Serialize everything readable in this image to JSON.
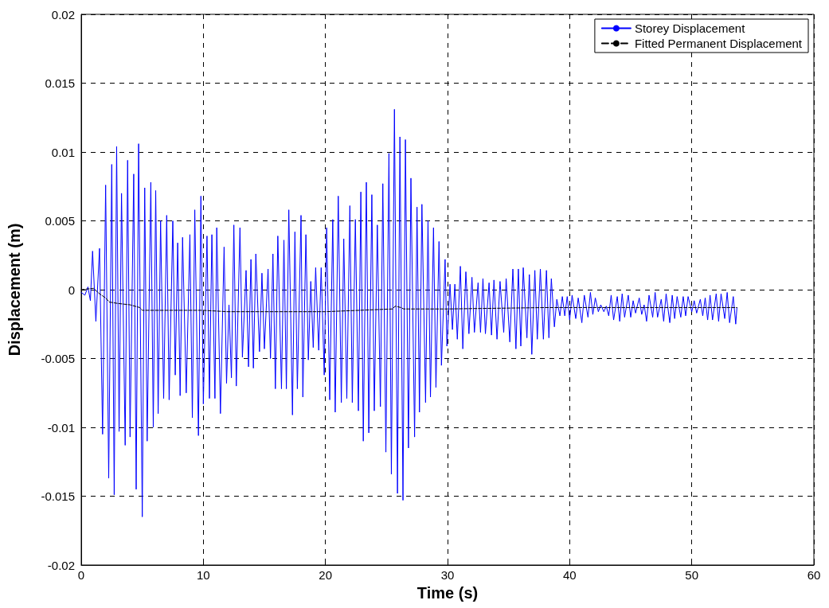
{
  "chart_data": {
    "type": "line",
    "xlabel": "Time (s)",
    "ylabel": "Displacement (m)",
    "xlim": [
      0,
      60
    ],
    "xticks": [
      0,
      10,
      20,
      30,
      40,
      50,
      60
    ],
    "ylim": [
      -0.02,
      0.02
    ],
    "yticks": [
      -0.02,
      -0.015,
      -0.01,
      -0.005,
      0,
      0.005,
      0.01,
      0.015,
      0.02
    ],
    "grid": true,
    "legend": "top right",
    "marker": "none",
    "series": [
      {
        "name": "Storey Displacement",
        "color": "#0000ff",
        "line_style": "solid",
        "x": [
          0,
          0.3,
          0.55,
          0.75,
          0.93,
          1.2,
          1.5,
          1.75,
          2.0,
          2.25,
          2.5,
          2.7,
          2.9,
          3.1,
          3.3,
          3.6,
          3.8,
          4.0,
          4.3,
          4.5,
          4.7,
          5.0,
          5.2,
          5.4,
          5.7,
          5.9,
          6.1,
          6.3,
          6.5,
          6.75,
          7.0,
          7.2,
          7.5,
          7.7,
          7.9,
          8.1,
          8.3,
          8.6,
          8.9,
          9.1,
          9.3,
          9.6,
          9.8,
          10.0,
          10.3,
          10.5,
          10.7,
          10.95,
          11.1,
          11.4,
          11.7,
          11.9,
          12.1,
          12.3,
          12.5,
          12.7,
          13.0,
          13.2,
          13.5,
          13.7,
          13.9,
          14.1,
          14.3,
          14.6,
          14.8,
          15.0,
          15.3,
          15.5,
          15.7,
          15.9,
          16.1,
          16.4,
          16.6,
          16.8,
          17.0,
          17.3,
          17.5,
          17.7,
          18.0,
          18.15,
          18.4,
          18.6,
          18.8,
          19.0,
          19.2,
          19.45,
          19.65,
          19.9,
          20.1,
          20.35,
          20.6,
          20.8,
          21.05,
          21.3,
          21.5,
          21.75,
          22.0,
          22.2,
          22.45,
          22.7,
          22.9,
          23.1,
          23.35,
          23.55,
          23.8,
          24.0,
          24.25,
          24.5,
          24.7,
          24.95,
          25.2,
          25.4,
          25.65,
          25.9,
          26.1,
          26.35,
          26.55,
          26.8,
          27.0,
          27.3,
          27.5,
          27.7,
          27.9,
          28.2,
          28.4,
          28.6,
          28.85,
          29.05,
          29.3,
          29.5,
          29.8,
          29.95,
          30.2,
          30.4,
          30.6,
          30.8,
          31.05,
          31.25,
          31.5,
          31.75,
          32.0,
          32.2,
          32.5,
          32.7,
          32.9,
          33.1,
          33.4,
          33.6,
          33.8,
          34.05,
          34.3,
          34.6,
          34.8,
          35.1,
          35.35,
          35.6,
          35.8,
          36.0,
          36.2,
          36.5,
          36.7,
          36.9,
          37.15,
          37.35,
          37.6,
          37.85,
          38.1,
          38.3,
          38.5,
          38.75,
          38.95,
          39.2,
          39.4,
          39.6,
          39.8,
          40.0,
          40.2,
          40.5,
          40.7,
          41.0,
          41.2,
          41.5,
          41.7,
          41.9,
          42.1,
          42.35,
          42.55,
          42.8,
          43.0,
          43.2,
          43.4,
          43.6,
          43.9,
          44.1,
          44.3,
          44.5,
          44.8,
          45.0,
          45.2,
          45.4,
          45.7,
          45.9,
          46.1,
          46.3,
          46.5,
          46.8,
          47.0,
          47.2,
          47.5,
          47.7,
          47.9,
          48.2,
          48.4,
          48.6,
          48.8,
          49.1,
          49.3,
          49.5,
          49.7,
          50.0,
          50.2,
          50.4,
          50.7,
          50.9,
          51.1,
          51.3,
          51.5,
          51.7,
          52.0,
          52.2,
          52.4,
          52.7,
          52.9,
          53.1,
          53.4,
          53.6,
          53.7
        ],
        "values": [
          -0.0002,
          -0.0004,
          0.0002,
          -0.0008,
          0.0028,
          -0.0023,
          0.003,
          -0.0105,
          0.0076,
          -0.0137,
          0.0091,
          -0.0149,
          0.0104,
          -0.0103,
          0.007,
          -0.0113,
          0.0094,
          -0.0107,
          0.0084,
          -0.0145,
          0.0106,
          -0.0165,
          0.0074,
          -0.011,
          0.0078,
          -0.01,
          0.0072,
          -0.009,
          0.005,
          -0.0079,
          0.0054,
          -0.008,
          0.005,
          -0.0062,
          0.0034,
          -0.0077,
          0.0038,
          -0.0075,
          0.004,
          -0.0093,
          0.0058,
          -0.0106,
          0.0068,
          -0.0083,
          0.0039,
          -0.0079,
          0.004,
          -0.0079,
          0.0045,
          -0.009,
          0.0031,
          -0.0068,
          -0.0011,
          -0.0064,
          0.0047,
          -0.007,
          0.0045,
          -0.0049,
          0.0014,
          -0.0056,
          0.0022,
          -0.0057,
          0.0026,
          -0.0045,
          0.0012,
          -0.0043,
          0.0015,
          -0.005,
          0.0026,
          -0.0072,
          0.0039,
          -0.0072,
          0.0036,
          -0.0072,
          0.0058,
          -0.0091,
          0.0042,
          -0.0072,
          0.0054,
          -0.0078,
          0.004,
          -0.0051,
          0.0006,
          -0.0042,
          0.0016,
          -0.0044,
          0.0016,
          -0.0062,
          0.0045,
          -0.008,
          0.0051,
          -0.0089,
          0.0068,
          -0.0082,
          0.0037,
          -0.0079,
          0.0061,
          -0.0082,
          0.0051,
          -0.0088,
          0.0071,
          -0.011,
          0.0078,
          -0.0104,
          0.0069,
          -0.0088,
          0.0047,
          -0.0085,
          0.0077,
          -0.0118,
          0.0099,
          -0.0134,
          0.0131,
          -0.0148,
          0.0111,
          -0.0153,
          0.0109,
          -0.0115,
          0.0081,
          -0.0107,
          0.006,
          -0.0089,
          0.0062,
          -0.0082,
          0.005,
          -0.0078,
          0.0045,
          -0.0071,
          0.0035,
          -0.0055,
          0.0022,
          -0.0041,
          0.0004,
          -0.0029,
          0.0004,
          -0.0036,
          0.0017,
          -0.0043,
          0.0013,
          -0.0032,
          0.0009,
          -0.0031,
          0.0005,
          -0.0031,
          0.0008,
          -0.0032,
          0.0005,
          -0.0033,
          0.0007,
          -0.0036,
          0.0006,
          -0.0031,
          0.0008,
          -0.0038,
          0.0015,
          -0.0043,
          0.0015,
          -0.0041,
          0.0016,
          -0.0035,
          0.0011,
          -0.0047,
          0.0014,
          -0.0036,
          0.0015,
          -0.0036,
          0.0014,
          -0.0035,
          0.0008,
          -0.0027,
          -0.0007,
          -0.0019,
          -0.0005,
          -0.0019,
          -0.0005,
          -0.0022,
          -0.0004,
          -0.0021,
          -0.0006,
          -0.0024,
          -0.0004,
          -0.002,
          -0.0002,
          -0.0018,
          -0.0006,
          -0.0016,
          -0.0011,
          -0.0016,
          -0.0012,
          -0.0019,
          -0.0004,
          -0.0022,
          -0.0005,
          -0.0023,
          -0.0003,
          -0.002,
          -0.0004,
          -0.002,
          -0.0008,
          -0.0017,
          -0.0006,
          -0.0018,
          -0.0011,
          -0.0023,
          -0.0004,
          -0.002,
          -0.0002,
          -0.002,
          -0.0007,
          -0.0023,
          -0.0003,
          -0.0024,
          -0.0004,
          -0.0021,
          -0.0005,
          -0.002,
          -0.0005,
          -0.0019,
          -0.0005,
          -0.0016,
          -0.0008,
          -0.0017,
          -0.0007,
          -0.0019,
          -0.0006,
          -0.0022,
          -0.0004,
          -0.0022,
          -0.0003,
          -0.0023,
          -0.0003,
          -0.0021,
          -0.0002,
          -0.0024,
          -0.0005,
          -0.0025,
          -0.0013
        ]
      },
      {
        "name": "Fitted Permanent Displacement",
        "color": "#000000",
        "line_style": "dashed",
        "x": [
          0,
          1.0,
          1.5,
          2.0,
          2.3,
          3.0,
          4.0,
          4.8,
          5.0,
          10,
          12,
          18,
          20,
          25.5,
          25.7,
          26.2,
          26.4,
          30,
          38,
          53.7
        ],
        "values": [
          0,
          0.0001,
          -0.0003,
          -0.0006,
          -0.0009,
          -0.001,
          -0.0011,
          -0.0013,
          -0.0015,
          -0.0015,
          -0.0016,
          -0.0016,
          -0.0016,
          -0.0014,
          -0.0012,
          -0.0013,
          -0.0014,
          -0.0014,
          -0.0013,
          -0.0013
        ]
      }
    ]
  }
}
